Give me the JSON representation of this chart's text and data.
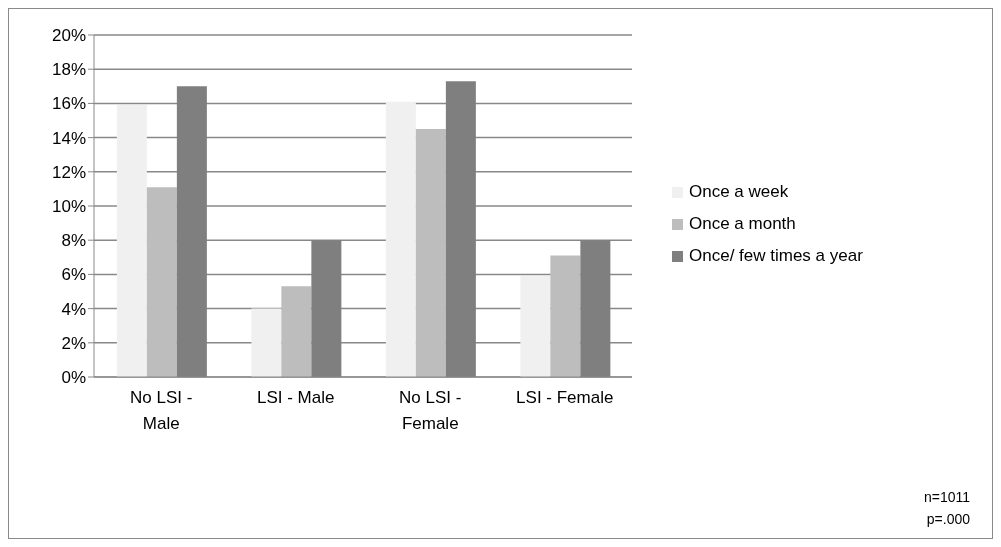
{
  "chart_data": {
    "type": "bar",
    "categories": [
      "No LSI - Male",
      "LSI - Male",
      "No LSI - Female",
      "LSI - Female"
    ],
    "series": [
      {
        "name": "Once a week",
        "color": "#f0f0f0",
        "values": [
          15.9,
          4.0,
          16.1,
          5.9
        ]
      },
      {
        "name": "Once a month",
        "color": "#bdbdbd",
        "values": [
          11.1,
          5.3,
          14.5,
          7.1
        ]
      },
      {
        "name": "Once/ few times a year",
        "color": "#7f7f7f",
        "values": [
          17.0,
          8.0,
          17.3,
          8.0
        ]
      }
    ],
    "ylim": [
      0,
      20
    ],
    "yticks": [
      {
        "value": 0,
        "label": "0%"
      },
      {
        "value": 2,
        "label": "2%"
      },
      {
        "value": 4,
        "label": "4%"
      },
      {
        "value": 6,
        "label": "6%"
      },
      {
        "value": 8,
        "label": "8%"
      },
      {
        "value": 10,
        "label": "10%"
      },
      {
        "value": 12,
        "label": "12%"
      },
      {
        "value": 14,
        "label": "14%"
      },
      {
        "value": 16,
        "label": "16%"
      },
      {
        "value": 18,
        "label": "18%"
      },
      {
        "value": 20,
        "label": "20%"
      }
    ],
    "grid": "y",
    "legend": "right",
    "annotations": [
      "n=1011",
      "p=.000"
    ]
  }
}
